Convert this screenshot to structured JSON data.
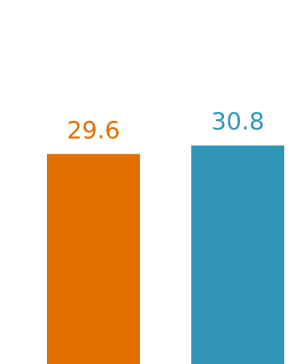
{
  "chart_data": {
    "type": "bar",
    "categories": [
      "",
      ""
    ],
    "values": [
      29.6,
      30.8
    ],
    "data_labels": [
      "29.6",
      "30.8"
    ],
    "colors": [
      "#E07000",
      "#3196B8"
    ],
    "title": "",
    "xlabel": "",
    "ylabel": "",
    "ylim": [
      0,
      51.3
    ],
    "grid": false,
    "legend": "none"
  }
}
